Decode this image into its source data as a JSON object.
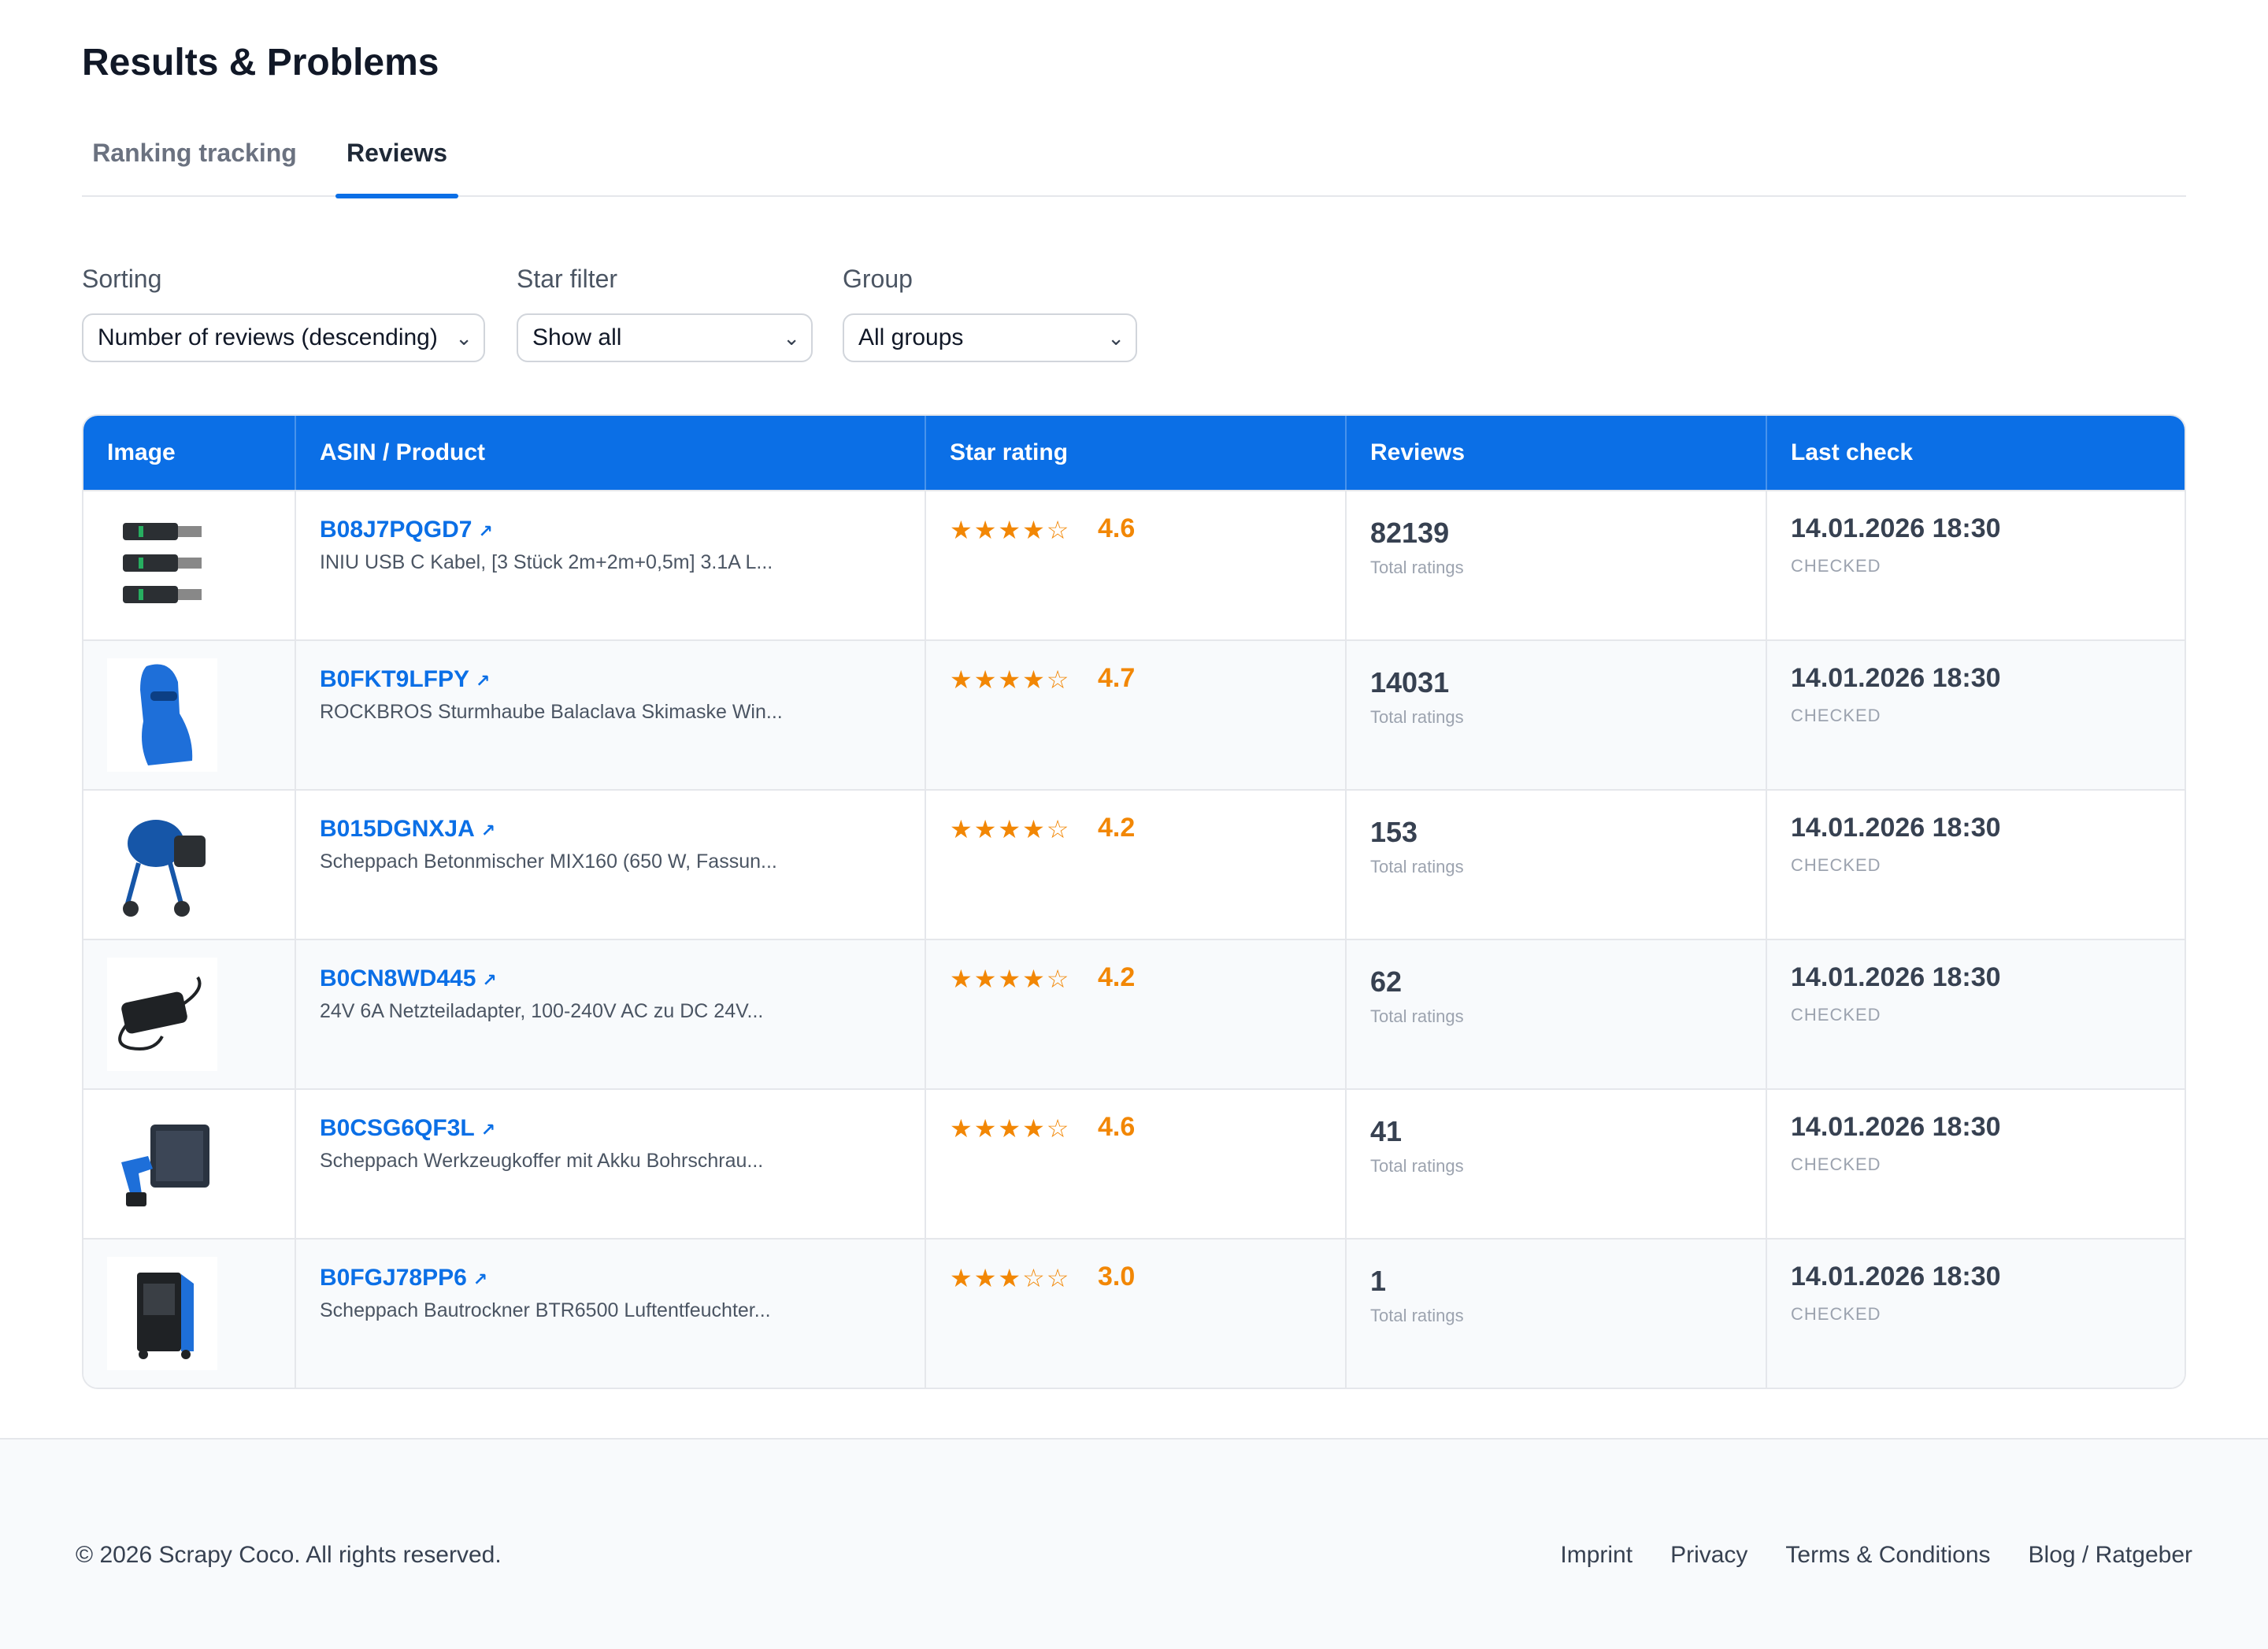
{
  "page": {
    "title": "Results & Problems"
  },
  "tabs": [
    {
      "label": "Ranking tracking"
    },
    {
      "label": "Reviews"
    }
  ],
  "filters": {
    "sorting": {
      "label": "Sorting",
      "value": "Number of reviews (descending)"
    },
    "star_filter": {
      "label": "Star filter",
      "value": "Show all"
    },
    "group": {
      "label": "Group",
      "value": "All groups"
    }
  },
  "table": {
    "headers": [
      "Image",
      "ASIN / Product",
      "Star rating",
      "Reviews",
      "Last check"
    ],
    "total_ratings_label": "Total ratings",
    "rows": [
      {
        "asin": "B08J7PQGD7",
        "title": "INIU USB C Kabel, [3 Stück 2m+2m+0,5m] 3.1A L...",
        "stars": "★★★★☆",
        "rating": "4.6",
        "reviews": "82139",
        "label": "Total ratings",
        "date": "14.01.2026 18:30",
        "status": "CHECKED",
        "image_icon": "usb-cable-icon"
      },
      {
        "asin": "B0FKT9LFPY",
        "title": "ROCKBROS Sturmhaube Balaclava Skimaske Win...",
        "stars": "★★★★☆",
        "rating": "4.7",
        "reviews": "14031",
        "label": "Total ratings",
        "date": "14.01.2026 18:30",
        "status": "CHECKED",
        "image_icon": "balaclava-icon"
      },
      {
        "asin": "B015DGNXJA",
        "title": "Scheppach Betonmischer MIX160 (650 W, Fassun...",
        "stars": "★★★★☆",
        "rating": "4.2",
        "reviews": "153",
        "label": "Total ratings",
        "date": "14.01.2026 18:30",
        "status": "CHECKED",
        "image_icon": "concrete-mixer-icon"
      },
      {
        "asin": "B0CN8WD445",
        "title": "24V 6A Netzteiladapter, 100-240V AC zu DC 24V...",
        "stars": "★★★★☆",
        "rating": "4.2",
        "reviews": "62",
        "label": "Total ratings",
        "date": "14.01.2026 18:30",
        "status": "CHECKED",
        "image_icon": "power-adapter-icon"
      },
      {
        "asin": "B0CSG6QF3L",
        "title": "Scheppach Werkzeugkoffer mit Akku Bohrschrau...",
        "stars": "★★★★☆",
        "rating": "4.6",
        "reviews": "41",
        "label": "Total ratings",
        "date": "14.01.2026 18:30",
        "status": "CHECKED",
        "image_icon": "toolcase-drill-icon"
      },
      {
        "asin": "B0FGJ78PP6",
        "title": "Scheppach Bautrockner BTR6500 Luftentfeuchter...",
        "stars": "★★★☆☆",
        "rating": "3.0",
        "reviews": "1",
        "label": "Total ratings",
        "date": "14.01.2026 18:30",
        "status": "CHECKED",
        "image_icon": "dehumidifier-icon"
      }
    ]
  },
  "footer": {
    "copyright": "© 2026 Scrapy Coco. All rights reserved.",
    "links": [
      "Imprint",
      "Privacy",
      "Terms & Conditions",
      "Blog / Ratgeber"
    ]
  },
  "colors": {
    "accent": "#0b6fe6",
    "star": "#f28705"
  }
}
